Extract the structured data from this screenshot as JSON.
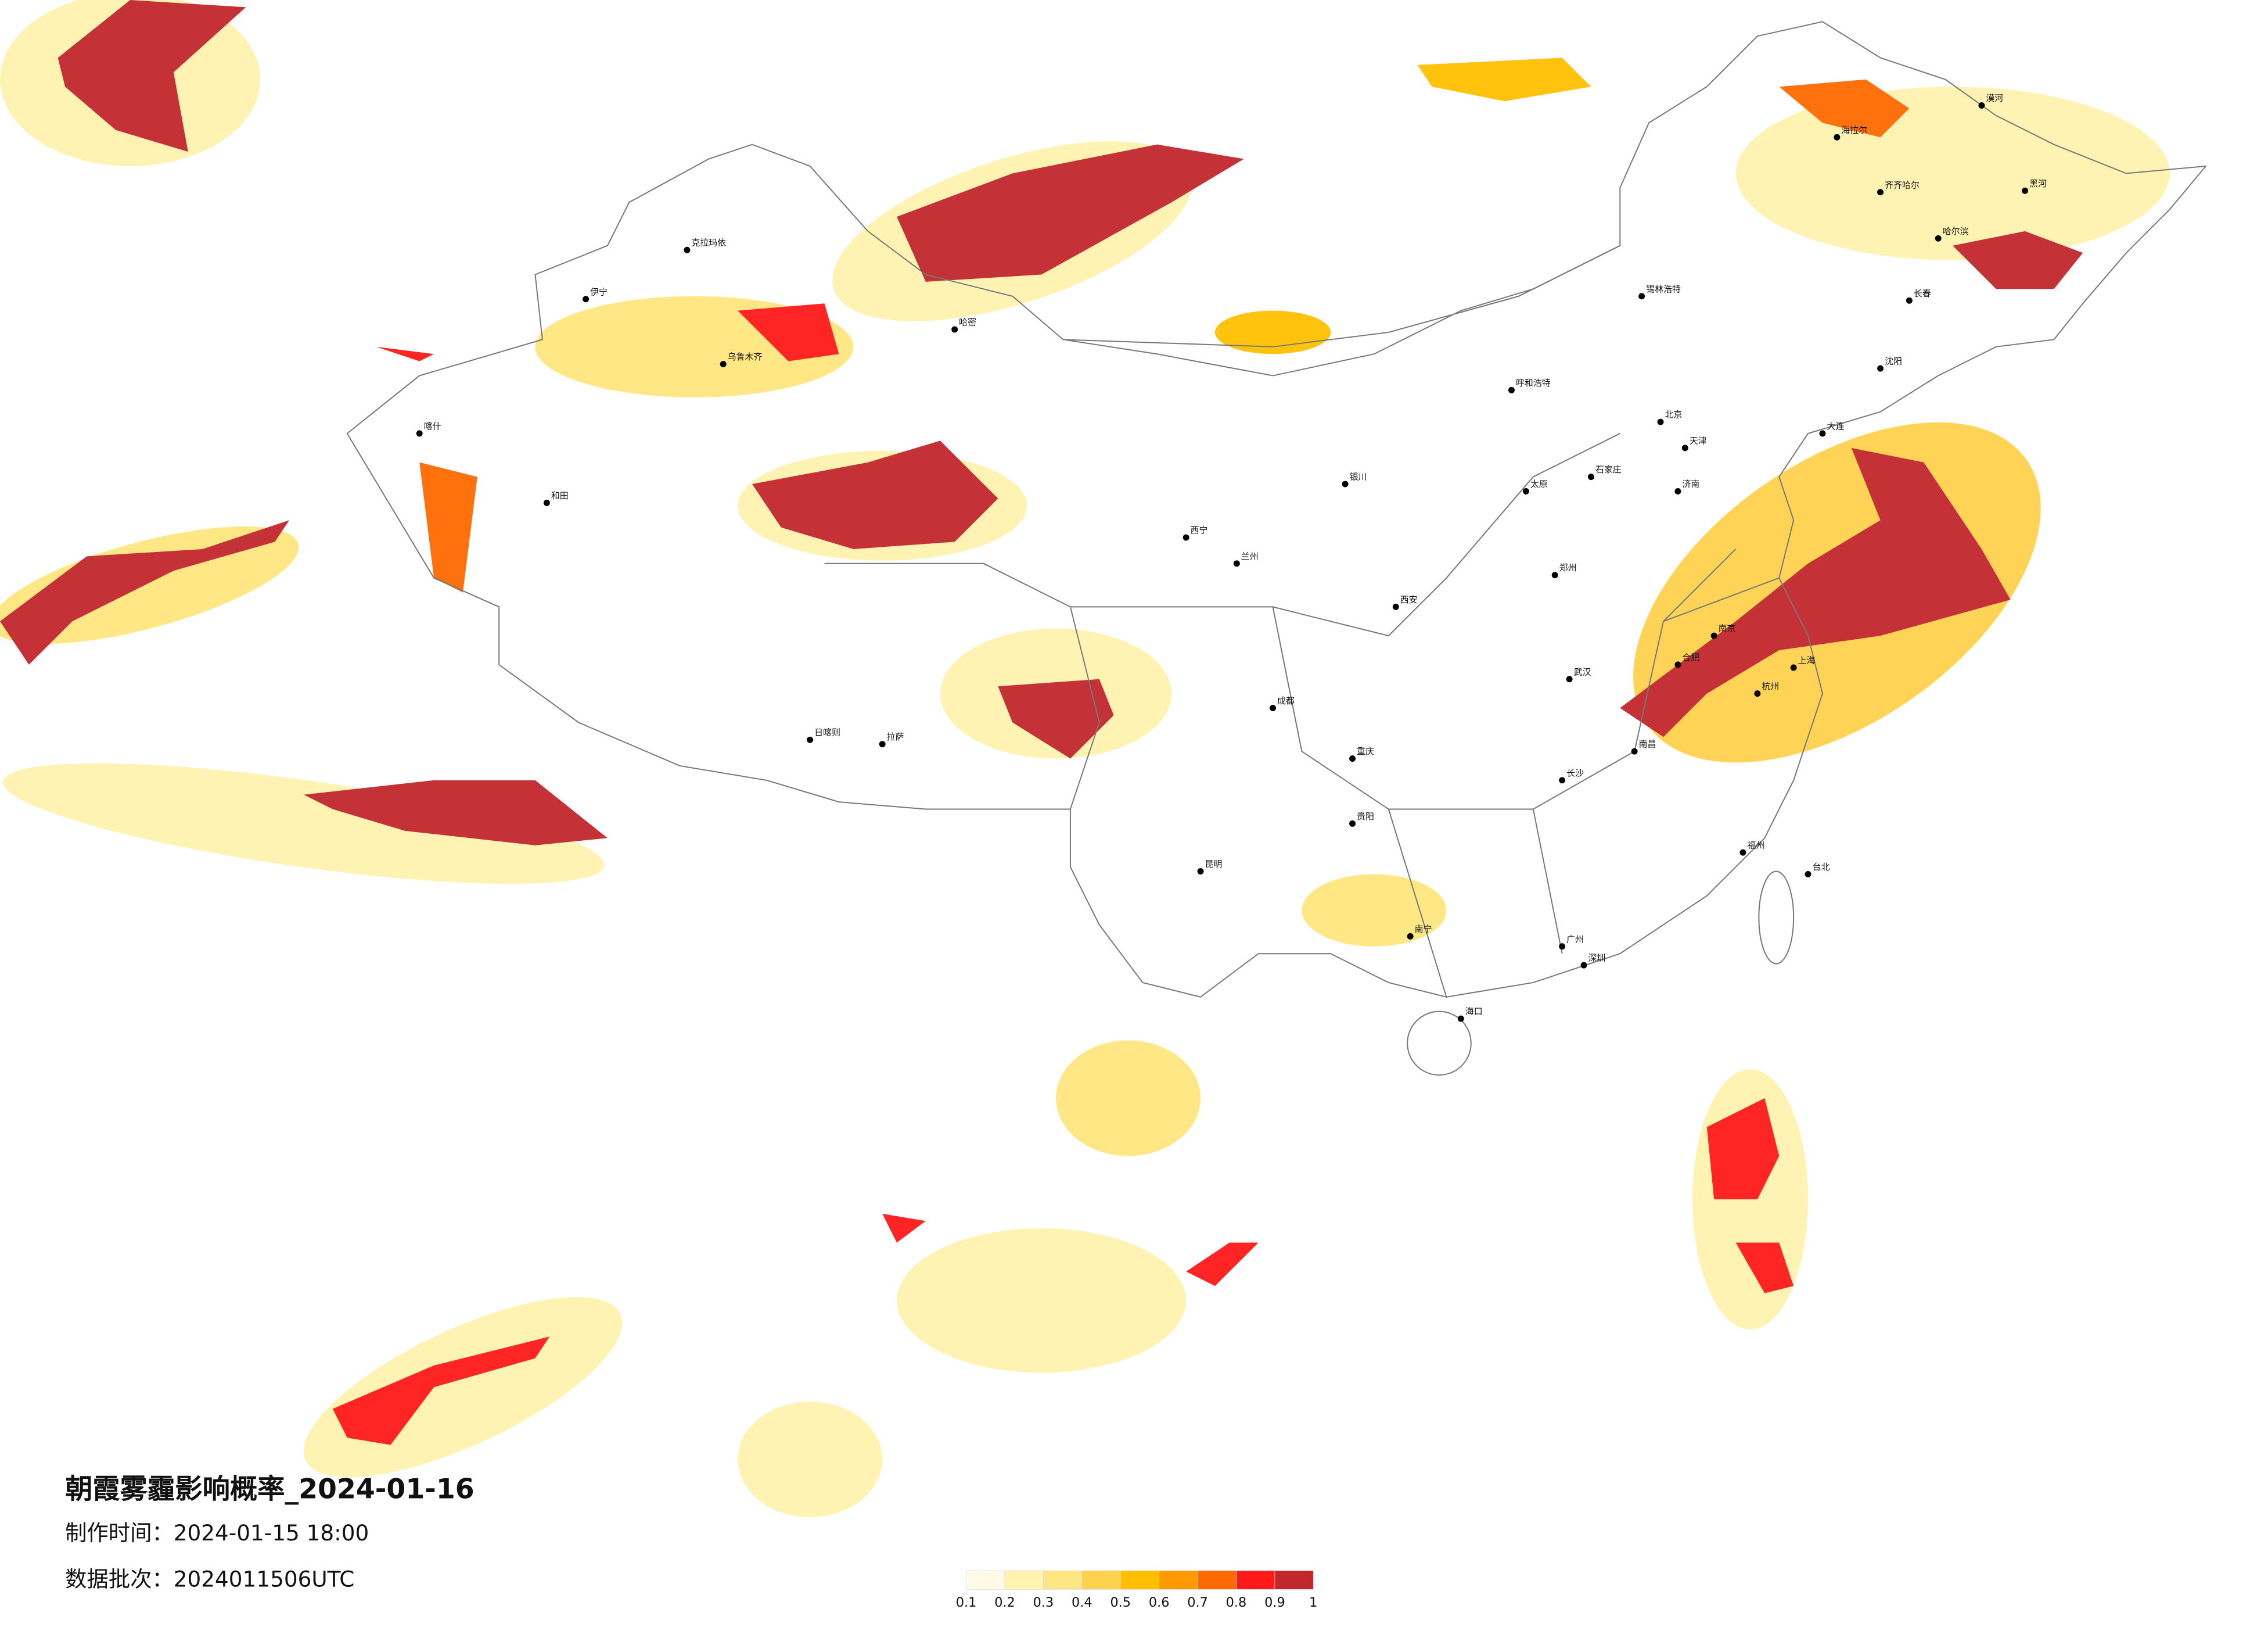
{
  "title": "朝霞雾霾影响概率_2024-01-16",
  "production_time": "制作时间：2024-01-15 18:00",
  "data_batch": "数据批次：2024011506UTC",
  "colorbar": {
    "ticks": [
      0.1,
      0.2,
      0.3,
      0.4,
      0.5,
      0.6,
      0.7,
      0.8,
      0.9,
      1
    ],
    "colors": [
      "#fffbe6",
      "#fff3b0",
      "#ffe680",
      "#ffd24d",
      "#ffbf00",
      "#ff9900",
      "#ff6a00",
      "#ff1a1a",
      "#c1272d"
    ]
  },
  "cities": [
    "北京",
    "天津",
    "上海",
    "广州",
    "深圳",
    "重庆",
    "成都",
    "武汉",
    "西安",
    "兰州",
    "乌鲁木齐",
    "拉萨",
    "昆明",
    "贵阳",
    "南宁",
    "海口",
    "长沙",
    "南昌",
    "福州",
    "杭州",
    "南京",
    "合肥",
    "济南",
    "郑州",
    "太原",
    "石家庄",
    "呼和浩特",
    "银川",
    "西宁",
    "哈尔滨",
    "长春",
    "沈阳",
    "大连",
    "台北",
    "喀什",
    "和田",
    "克拉玛依",
    "伊宁",
    "哈密",
    "日喀则",
    "齐齐哈尔",
    "漠河",
    "黑河",
    "海拉尔",
    "锡林浩特"
  ]
}
